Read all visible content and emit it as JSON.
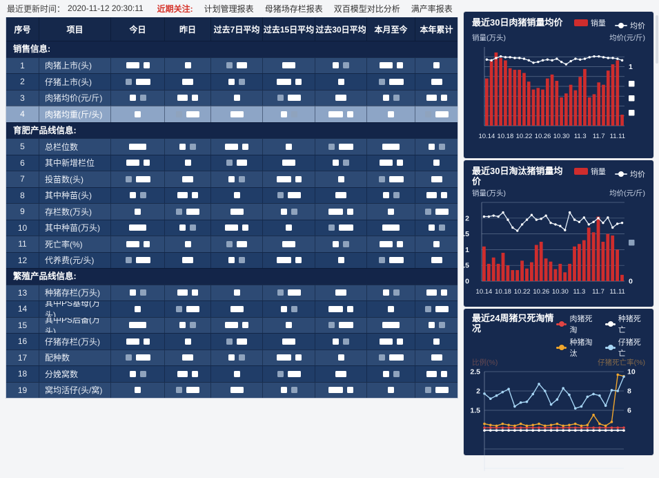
{
  "topbar": {
    "update_label": "最近更新时间：",
    "update_time": "2020-11-12 20:30:11",
    "focus_label": "近期关注:",
    "links": [
      "计划管理报表",
      "母猪场存栏报表",
      "双百模型对比分析",
      "满产率报表"
    ],
    "accent_red": "#d5342b"
  },
  "table": {
    "columns": [
      "序号",
      "项目",
      "今日",
      "昨日",
      "过去7日平均",
      "过去15日平均",
      "过去30日平均",
      "本月至今",
      "本年累计"
    ],
    "values_redacted": true,
    "selected_item": "肉猪均重(斤/头)",
    "sections": [
      {
        "title": "销售信息:",
        "rows": [
          {
            "no": "1",
            "item": "肉猪上市(头)"
          },
          {
            "no": "2",
            "item": "仔猪上市(头)"
          },
          {
            "no": "3",
            "item": "肉猪均价(元/斤)"
          },
          {
            "no": "4",
            "item": "肉猪均重(斤/头)",
            "selected": true
          }
        ]
      },
      {
        "title": "育肥产品线信息:",
        "rows": [
          {
            "no": "5",
            "item": "总栏位数"
          },
          {
            "no": "6",
            "item": "其中新增栏位"
          },
          {
            "no": "7",
            "item": "投苗数(头)"
          },
          {
            "no": "8",
            "item": "其中种苗(头)"
          },
          {
            "no": "9",
            "item": "存栏数(万头)"
          },
          {
            "no": "10",
            "item": "其中种苗(万头)"
          },
          {
            "no": "11",
            "item": "死亡率(%)"
          },
          {
            "no": "12",
            "item": "代养费(元/头)"
          }
        ]
      },
      {
        "title": "繁殖产品线信息:",
        "rows": [
          {
            "no": "13",
            "item": "种猪存栏(万头)"
          },
          {
            "no": "14",
            "item": "其中PS基母(万头)"
          },
          {
            "no": "15",
            "item": "其中PS后备(万头)"
          },
          {
            "no": "16",
            "item": "仔猪存栏(万头)"
          },
          {
            "no": "17",
            "item": "配种数"
          },
          {
            "no": "18",
            "item": "分娩窝数"
          },
          {
            "no": "19",
            "item": "窝均活仔(头/窝)"
          }
        ]
      }
    ]
  },
  "chart_data": [
    {
      "type": "bar",
      "title": "最近30日肉猪销量均价",
      "legend": [
        "销量",
        "均价"
      ],
      "ylabel_left": "销量(万头)",
      "ylabel_right": "均价(元/斤)",
      "x_ticks": [
        "10.14",
        "10.18",
        "10.22",
        "10.26",
        "10.30",
        "11.3",
        "11.7",
        "11.11"
      ],
      "axis_values_redacted": true,
      "right_axis_visible_label": "1",
      "bars_pct_of_plot": [
        60,
        82,
        93,
        86,
        83,
        73,
        71,
        71,
        67,
        56,
        46,
        48,
        46,
        60,
        65,
        57,
        36,
        41,
        52,
        45,
        62,
        72,
        36,
        40,
        55,
        52,
        70,
        78,
        83,
        14
      ],
      "line_pct_of_plot": [
        84,
        83,
        86,
        88,
        87,
        87,
        86,
        86,
        85,
        83,
        80,
        81,
        83,
        84,
        83,
        85,
        81,
        78,
        82,
        85,
        84,
        85,
        87,
        88,
        88,
        87,
        86,
        86,
        85,
        83
      ],
      "colors": {
        "bar": "#cf2d2d",
        "line": "#e2ecf7"
      }
    },
    {
      "type": "bar",
      "title": "最近30日淘汰猪销量均价",
      "legend": [
        "销量",
        "均价"
      ],
      "ylabel_left": "销量(万头)",
      "ylabel_right": "均价(元/斤)",
      "x_ticks": [
        "10.14",
        "10.18",
        "10.22",
        "10.26",
        "10.30",
        "11.3",
        "11.7",
        "11.11"
      ],
      "ylim_left": [
        0,
        2.5
      ],
      "yticks_left": [
        "2",
        "1.5",
        "1",
        "0.5",
        "0"
      ],
      "right_axis_visible_label": "0",
      "bars": [
        1.1,
        0.55,
        0.75,
        0.55,
        0.9,
        0.5,
        0.35,
        0.35,
        0.65,
        0.4,
        0.6,
        1.15,
        1.25,
        0.72,
        0.62,
        0.38,
        0.55,
        0.28,
        0.55,
        1.1,
        1.18,
        1.3,
        1.7,
        1.55,
        2.05,
        1.25,
        1.5,
        1.45,
        1.0,
        0.2
      ],
      "line": [
        2.05,
        2.05,
        2.08,
        2.05,
        2.18,
        1.95,
        1.7,
        1.6,
        1.8,
        1.95,
        2.1,
        1.95,
        1.98,
        2.08,
        1.85,
        1.8,
        1.75,
        1.62,
        2.18,
        1.95,
        1.88,
        2.02,
        1.8,
        1.88,
        2.0,
        1.85,
        2.02,
        1.7,
        1.82,
        1.85
      ],
      "colors": {
        "bar": "#cf2d2d",
        "line": "#e2ecf7"
      }
    },
    {
      "type": "line",
      "title": "最近24周猪只死淘情况",
      "legend": [
        "肉猪死淘",
        "种猪死亡",
        "种猪淘汰",
        "仔猪死亡"
      ],
      "ylabel_left": "比例(%)",
      "ylabel_right": "仔猪死亡率(%)",
      "yticks_left": [
        "2.5",
        "2",
        "1.5"
      ],
      "yticks_right": [
        "10",
        "8",
        "6"
      ],
      "bottom_clipped": true,
      "series": [
        {
          "name": "肉猪死淘",
          "color": "#e04545",
          "values": [
            1.05,
            1.05,
            1.05,
            1.05,
            1.05,
            1.05,
            1.05,
            1.05,
            1.05,
            1.05,
            1.05,
            1.05,
            1.05,
            1.05,
            1.05,
            1.05,
            1.05,
            1.05,
            1.05,
            1.05,
            1.05,
            1.05,
            1.05,
            1.05
          ]
        },
        {
          "name": "种猪死亡",
          "color": "#ffffff",
          "values": [
            0.98,
            0.98,
            0.98,
            0.98,
            0.98,
            0.98,
            0.98,
            0.98,
            0.98,
            0.98,
            0.98,
            0.98,
            0.98,
            0.98,
            0.98,
            0.98,
            0.98,
            0.98,
            0.98,
            0.98,
            0.98,
            0.98,
            0.98,
            0.98
          ]
        },
        {
          "name": "种猪淘汰",
          "color": "#f0a62e",
          "values": [
            1.15,
            1.12,
            1.1,
            1.15,
            1.12,
            1.1,
            1.15,
            1.1,
            1.12,
            1.15,
            1.1,
            1.12,
            1.15,
            1.1,
            1.12,
            1.15,
            1.1,
            1.12,
            1.38,
            1.15,
            1.1,
            1.2,
            2.42,
            2.38
          ]
        },
        {
          "name": "仔猪死亡",
          "color": "#a6d5f5",
          "values": [
            1.93,
            1.8,
            1.88,
            1.97,
            2.05,
            1.6,
            1.7,
            1.72,
            1.92,
            2.18,
            2.0,
            1.65,
            1.78,
            2.07,
            1.9,
            1.55,
            1.6,
            1.85,
            1.92,
            1.88,
            1.62,
            2.02,
            2.0,
            2.37
          ]
        }
      ]
    }
  ]
}
